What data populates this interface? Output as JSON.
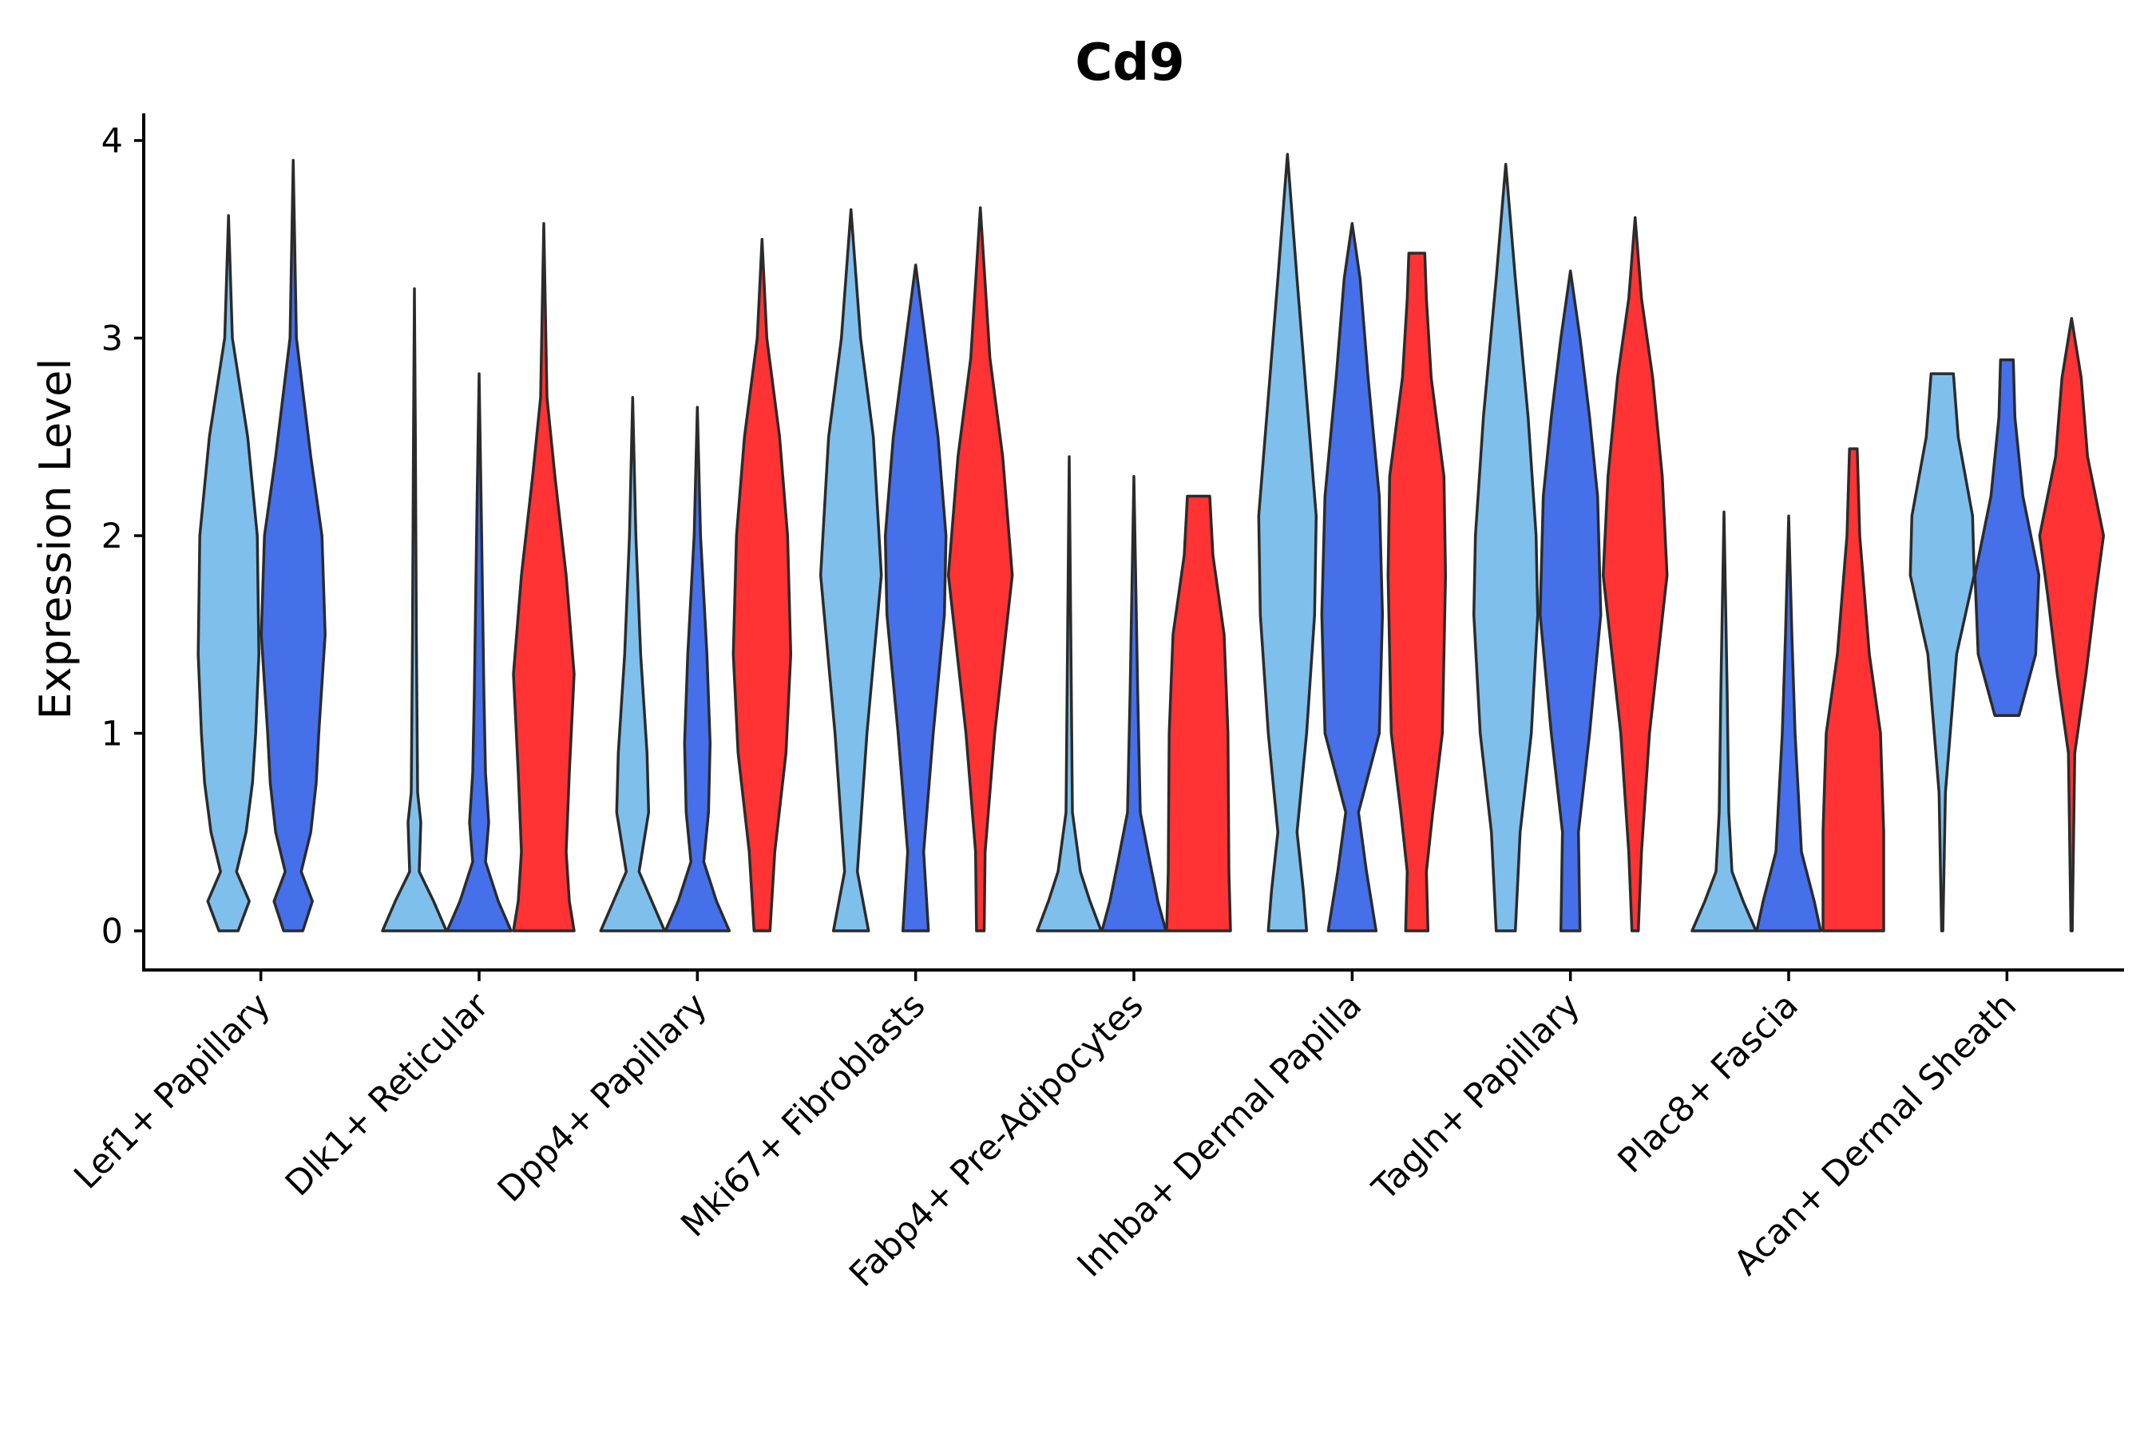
{
  "chart_data": {
    "type": "violin",
    "title": "Cd9",
    "xlabel": "",
    "ylabel": "Expression Level",
    "ylim": [
      -0.2,
      4.15
    ],
    "yticks": [
      0,
      1,
      2,
      3,
      4
    ],
    "grid": false,
    "legend": "none",
    "colors": {
      "light_blue": "#7fbfec",
      "blue": "#4570ea",
      "red": "#ff3333"
    },
    "groups": [
      {
        "category": "Lef1+ Papillary",
        "violins": [
          {
            "color": "light_blue",
            "max": 3.62,
            "profile": [
              [
                0,
                0.3
              ],
              [
                0.15,
                0.65
              ],
              [
                0.3,
                0.25
              ],
              [
                0.5,
                0.55
              ],
              [
                0.75,
                0.75
              ],
              [
                1.0,
                0.85
              ],
              [
                1.4,
                0.95
              ],
              [
                2.0,
                0.9
              ],
              [
                2.5,
                0.6
              ],
              [
                3.0,
                0.12
              ],
              [
                3.62,
                0
              ]
            ]
          },
          {
            "color": "blue",
            "max": 3.9,
            "profile": [
              [
                0,
                0.3
              ],
              [
                0.15,
                0.6
              ],
              [
                0.3,
                0.25
              ],
              [
                0.5,
                0.55
              ],
              [
                0.75,
                0.72
              ],
              [
                1.0,
                0.8
              ],
              [
                1.5,
                1.0
              ],
              [
                2.0,
                0.9
              ],
              [
                2.4,
                0.55
              ],
              [
                3.0,
                0.1
              ],
              [
                3.9,
                0
              ]
            ]
          }
        ]
      },
      {
        "category": "Dlk1+ Reticular",
        "violins": [
          {
            "color": "light_blue",
            "max": 3.25,
            "profile": [
              [
                0,
                1.0
              ],
              [
                0.15,
                0.6
              ],
              [
                0.3,
                0.15
              ],
              [
                0.55,
                0.2
              ],
              [
                0.7,
                0.1
              ],
              [
                1.5,
                0.06
              ],
              [
                2.5,
                0.03
              ],
              [
                3.25,
                0
              ]
            ]
          },
          {
            "color": "blue",
            "max": 2.82,
            "profile": [
              [
                0,
                1.0
              ],
              [
                0.15,
                0.6
              ],
              [
                0.35,
                0.2
              ],
              [
                0.55,
                0.3
              ],
              [
                0.8,
                0.2
              ],
              [
                1.2,
                0.15
              ],
              [
                2.0,
                0.08
              ],
              [
                2.82,
                0
              ]
            ]
          },
          {
            "color": "red",
            "max": 3.58,
            "profile": [
              [
                0,
                0.95
              ],
              [
                0.15,
                0.8
              ],
              [
                0.4,
                0.7
              ],
              [
                0.8,
                0.8
              ],
              [
                1.3,
                0.95
              ],
              [
                1.8,
                0.7
              ],
              [
                2.3,
                0.35
              ],
              [
                2.7,
                0.1
              ],
              [
                3.58,
                0
              ]
            ]
          }
        ]
      },
      {
        "category": "Dpp4+ Papillary",
        "violins": [
          {
            "color": "light_blue",
            "max": 2.7,
            "profile": [
              [
                0,
                1.0
              ],
              [
                0.15,
                0.6
              ],
              [
                0.3,
                0.2
              ],
              [
                0.6,
                0.5
              ],
              [
                0.9,
                0.45
              ],
              [
                1.4,
                0.25
              ],
              [
                2.0,
                0.1
              ],
              [
                2.7,
                0
              ]
            ]
          },
          {
            "color": "blue",
            "max": 2.65,
            "profile": [
              [
                0,
                1.0
              ],
              [
                0.15,
                0.6
              ],
              [
                0.35,
                0.2
              ],
              [
                0.6,
                0.35
              ],
              [
                0.95,
                0.4
              ],
              [
                1.4,
                0.3
              ],
              [
                2.0,
                0.1
              ],
              [
                2.65,
                0
              ]
            ]
          },
          {
            "color": "red",
            "max": 3.5,
            "profile": [
              [
                0,
                0.25
              ],
              [
                0.4,
                0.4
              ],
              [
                0.9,
                0.75
              ],
              [
                1.4,
                0.9
              ],
              [
                2.0,
                0.8
              ],
              [
                2.5,
                0.55
              ],
              [
                3.0,
                0.15
              ],
              [
                3.5,
                0
              ]
            ]
          }
        ]
      },
      {
        "category": "Mki67+ Fibroblasts",
        "violins": [
          {
            "color": "light_blue",
            "max": 3.65,
            "profile": [
              [
                0,
                0.55
              ],
              [
                0.3,
                0.2
              ],
              [
                1.0,
                0.5
              ],
              [
                1.8,
                0.95
              ],
              [
                2.5,
                0.7
              ],
              [
                3.0,
                0.3
              ],
              [
                3.65,
                0
              ]
            ]
          },
          {
            "color": "blue",
            "max": 3.37,
            "profile": [
              [
                0,
                0.4
              ],
              [
                0.4,
                0.25
              ],
              [
                1.0,
                0.55
              ],
              [
                1.6,
                0.9
              ],
              [
                2.0,
                0.95
              ],
              [
                2.5,
                0.7
              ],
              [
                3.0,
                0.3
              ],
              [
                3.37,
                0
              ]
            ]
          },
          {
            "color": "red",
            "max": 3.66,
            "profile": [
              [
                0,
                0.12
              ],
              [
                0.4,
                0.15
              ],
              [
                1.0,
                0.45
              ],
              [
                1.8,
                1.0
              ],
              [
                2.4,
                0.7
              ],
              [
                2.9,
                0.3
              ],
              [
                3.66,
                0
              ]
            ]
          }
        ]
      },
      {
        "category": "Fabp4+ Pre-Adipocytes",
        "violins": [
          {
            "color": "light_blue",
            "max": 2.4,
            "profile": [
              [
                0,
                1.0
              ],
              [
                0.15,
                0.65
              ],
              [
                0.3,
                0.35
              ],
              [
                0.6,
                0.1
              ],
              [
                1.5,
                0.05
              ],
              [
                2.4,
                0
              ]
            ]
          },
          {
            "color": "blue",
            "max": 2.3,
            "profile": [
              [
                0,
                1.0
              ],
              [
                0.15,
                0.75
              ],
              [
                0.35,
                0.5
              ],
              [
                0.6,
                0.2
              ],
              [
                1.2,
                0.12
              ],
              [
                2.3,
                0
              ]
            ]
          },
          {
            "color": "red",
            "max": 2.2,
            "profile": [
              [
                0,
                1.0
              ],
              [
                0.3,
                0.95
              ],
              [
                1.0,
                0.92
              ],
              [
                1.5,
                0.8
              ],
              [
                1.9,
                0.45
              ],
              [
                2.2,
                0.35
              ]
            ]
          }
        ]
      },
      {
        "category": "Inhba+ Dermal Papilla",
        "violins": [
          {
            "color": "light_blue",
            "max": 3.93,
            "profile": [
              [
                0,
                0.6
              ],
              [
                0.2,
                0.5
              ],
              [
                0.5,
                0.3
              ],
              [
                1.0,
                0.6
              ],
              [
                1.6,
                0.85
              ],
              [
                2.1,
                0.9
              ],
              [
                2.8,
                0.55
              ],
              [
                3.3,
                0.3
              ],
              [
                3.93,
                0
              ]
            ]
          },
          {
            "color": "blue",
            "max": 3.58,
            "profile": [
              [
                0,
                0.75
              ],
              [
                0.3,
                0.45
              ],
              [
                0.6,
                0.2
              ],
              [
                1.0,
                0.85
              ],
              [
                1.6,
                0.95
              ],
              [
                2.2,
                0.85
              ],
              [
                2.8,
                0.5
              ],
              [
                3.3,
                0.25
              ],
              [
                3.58,
                0
              ]
            ]
          },
          {
            "color": "red",
            "max": 3.43,
            "profile": [
              [
                0,
                0.35
              ],
              [
                0.3,
                0.3
              ],
              [
                0.6,
                0.5
              ],
              [
                1.0,
                0.8
              ],
              [
                1.8,
                0.9
              ],
              [
                2.3,
                0.85
              ],
              [
                2.8,
                0.45
              ],
              [
                3.2,
                0.3
              ],
              [
                3.43,
                0.25
              ]
            ]
          }
        ]
      },
      {
        "category": "Tagln+ Papillary",
        "violins": [
          {
            "color": "light_blue",
            "max": 3.88,
            "profile": [
              [
                0,
                0.3
              ],
              [
                0.5,
                0.45
              ],
              [
                1.0,
                0.8
              ],
              [
                1.6,
                1.0
              ],
              [
                2.0,
                0.95
              ],
              [
                2.6,
                0.7
              ],
              [
                3.3,
                0.3
              ],
              [
                3.88,
                0
              ]
            ]
          },
          {
            "color": "blue",
            "max": 3.34,
            "profile": [
              [
                0,
                0.3
              ],
              [
                0.5,
                0.25
              ],
              [
                1.0,
                0.6
              ],
              [
                1.6,
                0.95
              ],
              [
                2.2,
                0.85
              ],
              [
                2.6,
                0.6
              ],
              [
                3.0,
                0.3
              ],
              [
                3.34,
                0
              ]
            ]
          },
          {
            "color": "red",
            "max": 3.61,
            "profile": [
              [
                0,
                0.1
              ],
              [
                0.4,
                0.2
              ],
              [
                1.0,
                0.45
              ],
              [
                1.8,
                1.0
              ],
              [
                2.3,
                0.85
              ],
              [
                2.8,
                0.55
              ],
              [
                3.2,
                0.2
              ],
              [
                3.61,
                0
              ]
            ]
          }
        ]
      },
      {
        "category": "Plac8+ Fascia",
        "violins": [
          {
            "color": "light_blue",
            "max": 2.12,
            "profile": [
              [
                0,
                1.0
              ],
              [
                0.15,
                0.6
              ],
              [
                0.3,
                0.25
              ],
              [
                0.6,
                0.15
              ],
              [
                1.2,
                0.1
              ],
              [
                2.12,
                0
              ]
            ]
          },
          {
            "color": "blue",
            "max": 2.1,
            "profile": [
              [
                0,
                1.0
              ],
              [
                0.15,
                0.8
              ],
              [
                0.4,
                0.4
              ],
              [
                0.7,
                0.3
              ],
              [
                1.0,
                0.2
              ],
              [
                1.5,
                0.1
              ],
              [
                2.1,
                0
              ]
            ]
          },
          {
            "color": "red",
            "max": 2.44,
            "profile": [
              [
                0,
                0.95
              ],
              [
                0.5,
                0.95
              ],
              [
                1.0,
                0.85
              ],
              [
                1.4,
                0.5
              ],
              [
                2.0,
                0.2
              ],
              [
                2.44,
                0.12
              ]
            ]
          }
        ]
      },
      {
        "category": "Acan+ Dermal Sheath",
        "violins": [
          {
            "color": "light_blue",
            "max": 2.82,
            "profile": [
              [
                0,
                0.02
              ],
              [
                0.7,
                0.1
              ],
              [
                1.4,
                0.45
              ],
              [
                1.8,
                1.0
              ],
              [
                2.1,
                0.95
              ],
              [
                2.5,
                0.5
              ],
              [
                2.82,
                0.35
              ]
            ]
          },
          {
            "color": "blue",
            "max": 2.89,
            "profile": [
              [
                1.09,
                0.38
              ],
              [
                1.4,
                0.9
              ],
              [
                1.8,
                1.0
              ],
              [
                2.2,
                0.5
              ],
              [
                2.6,
                0.25
              ],
              [
                2.89,
                0.2
              ]
            ]
          },
          {
            "color": "red",
            "max": 3.1,
            "profile": [
              [
                0,
                0.02
              ],
              [
                0.9,
                0.1
              ],
              [
                1.3,
                0.45
              ],
              [
                1.7,
                0.75
              ],
              [
                2.0,
                1.0
              ],
              [
                2.4,
                0.5
              ],
              [
                2.8,
                0.3
              ],
              [
                3.1,
                0
              ]
            ]
          }
        ]
      }
    ]
  }
}
